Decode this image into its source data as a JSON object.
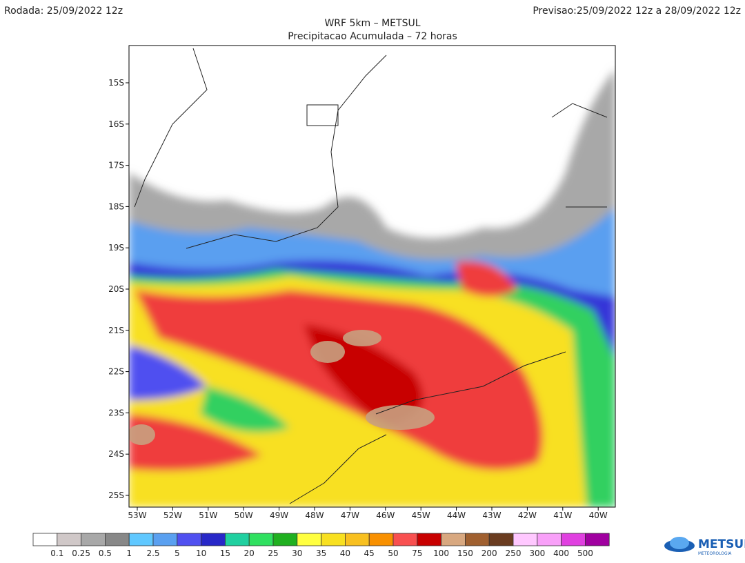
{
  "header": {
    "run": "Rodada: 25/09/2022 12z",
    "forecast": "Previsao:25/09/2022 12z a 28/09/2022 12z",
    "title": "WRF 5km – METSUL",
    "subtitle": "Precipitacao Acumulada – 72 horas"
  },
  "map": {
    "lat_labels": [
      "15S",
      "16S",
      "17S",
      "18S",
      "19S",
      "20S",
      "21S",
      "22S",
      "23S",
      "24S",
      "25S"
    ],
    "lon_labels": [
      "53W",
      "52W",
      "51W",
      "50W",
      "49W",
      "48W",
      "47W",
      "46W",
      "45W",
      "44W",
      "43W",
      "42W",
      "41W",
      "40W"
    ]
  },
  "colorbar": {
    "labels": [
      0.1,
      0.25,
      0.5,
      1,
      2.5,
      5,
      10,
      15,
      20,
      25,
      30,
      35,
      40,
      45,
      50,
      75,
      100,
      150,
      200,
      250,
      300,
      400,
      500
    ]
  },
  "logo": {
    "name": "METSUL",
    "tagline": "METEOROLOGIA"
  }
}
